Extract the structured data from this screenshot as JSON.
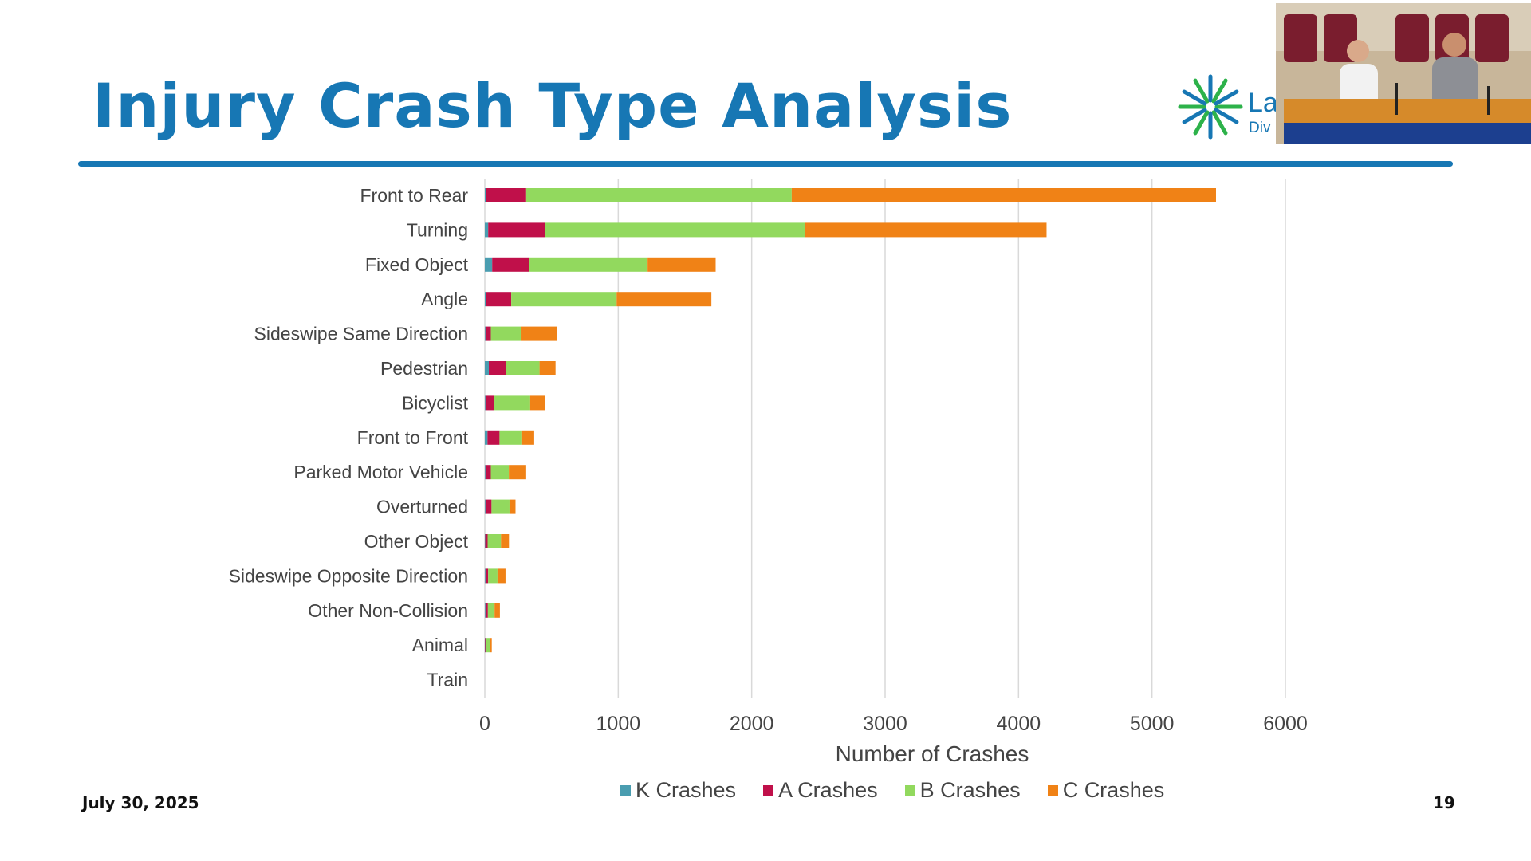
{
  "slide": {
    "title": "Injury Crash Type Analysis",
    "date": "July 30, 2025",
    "page_number": "19",
    "title_color": "#1777b4",
    "logo": {
      "text_line1": "La",
      "text_line2": "Div",
      "color": "#2db24a"
    }
  },
  "video_inset": {
    "icon": "webcam-feed"
  },
  "chart_data": {
    "type": "bar",
    "orientation": "horizontal",
    "stacked": true,
    "categories": [
      "Front to Rear",
      "Turning",
      "Fixed Object",
      "Angle",
      "Sideswipe Same Direction",
      "Pedestrian",
      "Bicyclist",
      "Front to Front",
      "Parked Motor Vehicle",
      "Overturned",
      "Other Object",
      "Sideswipe Opposite Direction",
      "Other Non-Collision",
      "Animal",
      "Train"
    ],
    "series": [
      {
        "name": "K Crashes",
        "color": "#4a9db0",
        "values": [
          10,
          25,
          55,
          8,
          5,
          30,
          5,
          20,
          5,
          5,
          3,
          5,
          5,
          2,
          0
        ]
      },
      {
        "name": "A Crashes",
        "color": "#c0104a",
        "values": [
          300,
          425,
          275,
          190,
          40,
          130,
          65,
          90,
          40,
          45,
          18,
          20,
          18,
          5,
          0
        ]
      },
      {
        "name": "B Crashes",
        "color": "#92d95e",
        "values": [
          1990,
          1950,
          890,
          790,
          230,
          250,
          270,
          170,
          135,
          135,
          100,
          70,
          50,
          30,
          0
        ]
      },
      {
        "name": "C Crashes",
        "color": "#f08216",
        "values": [
          3180,
          1810,
          510,
          710,
          265,
          120,
          110,
          90,
          130,
          45,
          60,
          60,
          40,
          15,
          0
        ]
      }
    ],
    "xlabel": "Number of Crashes",
    "ylabel": "",
    "xlim": [
      0,
      6000
    ],
    "xticks": [
      0,
      1000,
      2000,
      3000,
      4000,
      5000,
      6000
    ],
    "grid": true,
    "legend_position": "bottom"
  }
}
